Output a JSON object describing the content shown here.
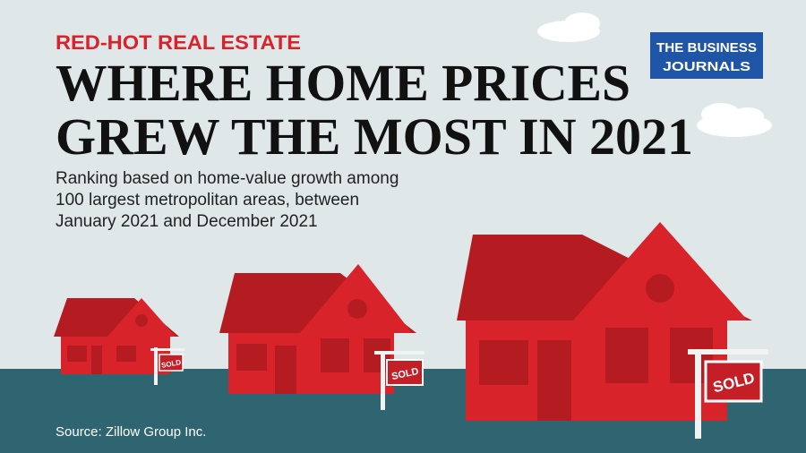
{
  "header": {
    "kicker": "RED-HOT REAL ESTATE",
    "title": [
      "WHERE HOME PRICES",
      "GREW THE MOST IN 2021"
    ],
    "subtitle": [
      "Ranking based on home-value growth among",
      "100 largest metropolitan areas, between",
      "January 2021 and December 2021"
    ]
  },
  "logo": [
    "THE BUSINESS",
    "JOURNALS"
  ],
  "signs": [
    "SOLD",
    "SOLD",
    "SOLD"
  ],
  "footer": {
    "source": "Source: Zillow Group Inc."
  }
}
